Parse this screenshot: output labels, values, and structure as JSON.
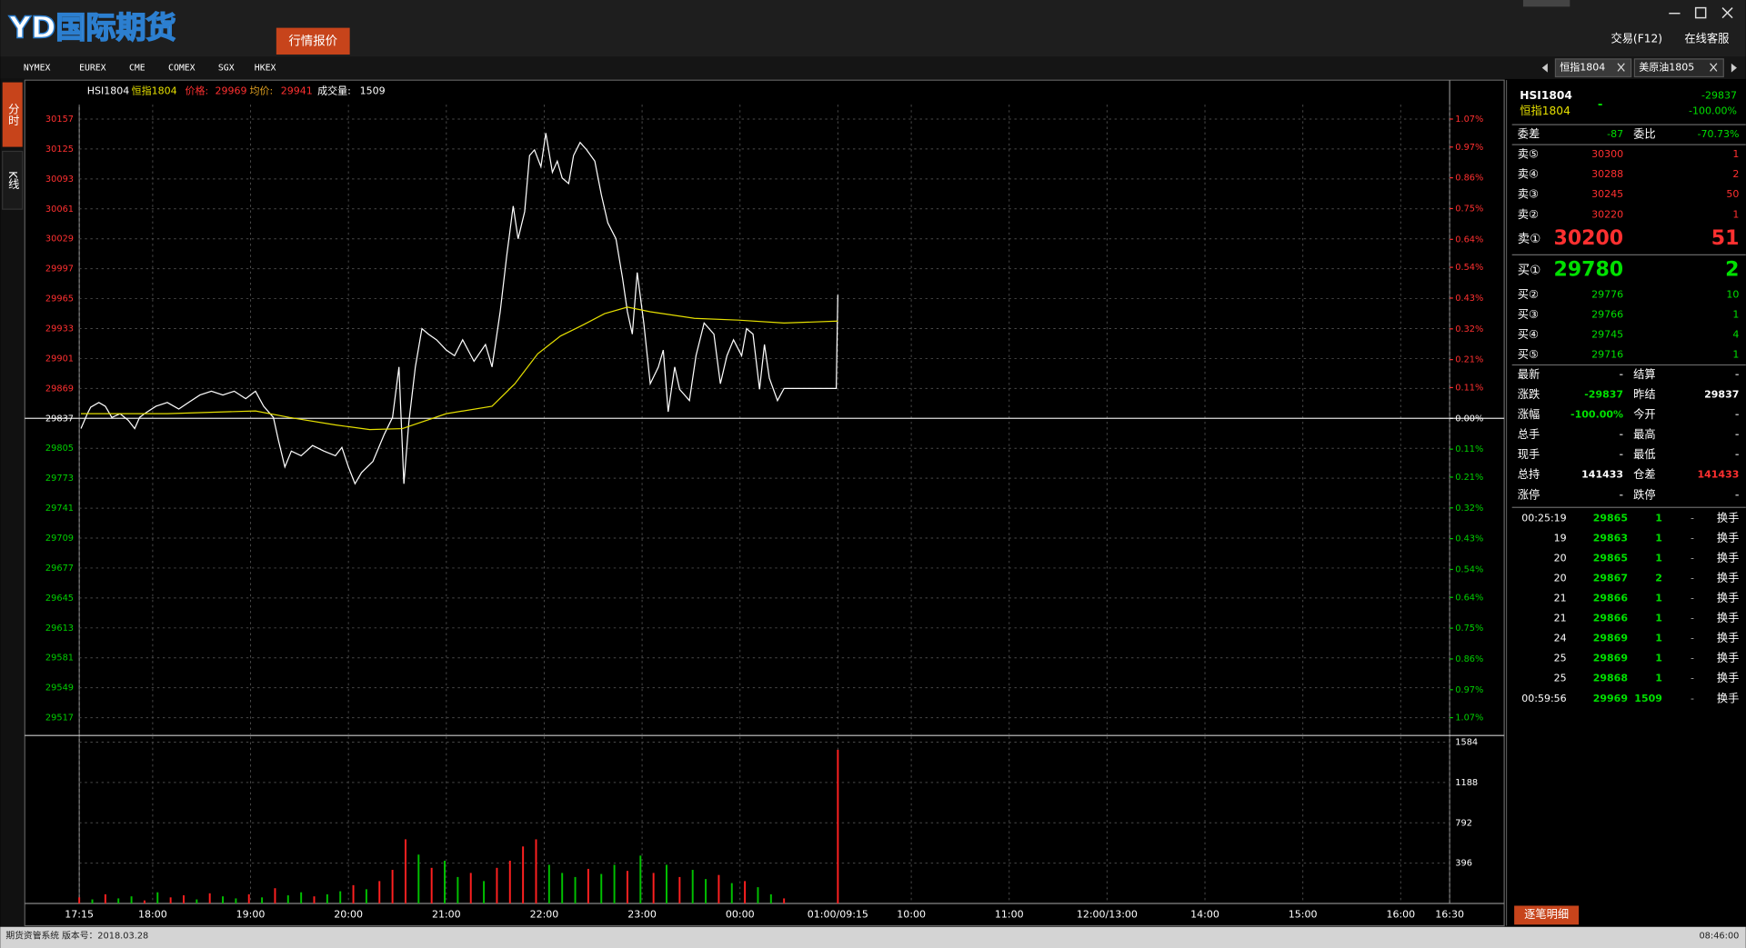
{
  "app": {
    "logo": "YD国际期货",
    "quote_button": "行情报价",
    "trade": "交易(F12)",
    "service": "在线客服",
    "exchanges": [
      "NYMEX",
      "EUREX",
      "CME",
      "COMEX",
      "SGX",
      "HKEX"
    ],
    "tabs": [
      "恒指1804",
      "美原油1805"
    ],
    "side_tabs": [
      "分时",
      "K线"
    ],
    "status": "期货资管系统  版本号：2018.03.28",
    "clock": "08:46:00"
  },
  "quote": {
    "code": "HSI1804",
    "name": "恒指1804",
    "change_mark": "-",
    "change": "-29837",
    "change_pct": "-100.00%",
    "ratio_row": [
      "委差",
      "-87",
      "委比",
      "-70.73%"
    ],
    "asks": [
      [
        "卖⑤",
        "30300",
        "1"
      ],
      [
        "卖④",
        "30288",
        "2"
      ],
      [
        "卖③",
        "30245",
        "50"
      ],
      [
        "卖②",
        "30220",
        "1"
      ],
      [
        "卖①",
        "30200",
        "51"
      ]
    ],
    "bids": [
      [
        "买①",
        "29780",
        "2"
      ],
      [
        "买②",
        "29776",
        "10"
      ],
      [
        "买③",
        "29766",
        "1"
      ],
      [
        "买④",
        "29745",
        "4"
      ],
      [
        "买⑤",
        "29716",
        "1"
      ]
    ],
    "stats": [
      [
        "最新",
        "-",
        "结算",
        "-"
      ],
      [
        "涨跌",
        "-29837",
        "昨结",
        "29837"
      ],
      [
        "涨幅",
        "-100.00%",
        "今开",
        "-"
      ],
      [
        "总手",
        "-",
        "最高",
        "-"
      ],
      [
        "现手",
        "-",
        "最低",
        "-"
      ],
      [
        "总持",
        "141433",
        "仓差",
        "141433"
      ],
      [
        "涨停",
        "-",
        "跌停",
        "-"
      ]
    ],
    "ticks": [
      [
        "00:25:19",
        "29865",
        "1",
        "-",
        "换手"
      ],
      [
        "19",
        "29863",
        "1",
        "-",
        "换手"
      ],
      [
        "20",
        "29865",
        "1",
        "-",
        "换手"
      ],
      [
        "20",
        "29867",
        "2",
        "-",
        "换手"
      ],
      [
        "21",
        "29866",
        "1",
        "-",
        "换手"
      ],
      [
        "21",
        "29866",
        "1",
        "-",
        "换手"
      ],
      [
        "24",
        "29869",
        "1",
        "-",
        "换手"
      ],
      [
        "25",
        "29869",
        "1",
        "-",
        "换手"
      ],
      [
        "25",
        "29868",
        "1",
        "-",
        "换手"
      ],
      [
        "00:59:56",
        "29969",
        "1509",
        "-",
        "换手"
      ]
    ],
    "detail_button": "逐笔明细"
  },
  "chart_data": [
    {
      "type": "line",
      "title": "HSI1804",
      "subtitle": "恒指1804",
      "grid": true,
      "xlim": [
        0,
        840
      ],
      "xticks": [
        {
          "value": 0,
          "label": "17:15"
        },
        {
          "value": 45,
          "label": "18:00"
        },
        {
          "value": 105,
          "label": "19:00"
        },
        {
          "value": 165,
          "label": "20:00"
        },
        {
          "value": 225,
          "label": "21:00"
        },
        {
          "value": 285,
          "label": "22:00"
        },
        {
          "value": 345,
          "label": "23:00"
        },
        {
          "value": 405,
          "label": "00:00"
        },
        {
          "value": 465,
          "label": "01:00/09:15"
        },
        {
          "value": 510,
          "label": "10:00"
        },
        {
          "value": 570,
          "label": "11:00"
        },
        {
          "value": 630,
          "label": "12:00/13:00"
        },
        {
          "value": 690,
          "label": "14:00"
        },
        {
          "value": 750,
          "label": "15:00"
        },
        {
          "value": 810,
          "label": "16:00"
        },
        {
          "value": 840,
          "label": "16:30"
        }
      ],
      "ylim": [
        29517,
        30157
      ],
      "yticks": [
        30157,
        30125,
        30093,
        30061,
        30029,
        29997,
        29965,
        29933,
        29901,
        29869,
        29837,
        29805,
        29773,
        29741,
        29709,
        29677,
        29645,
        29613,
        29581,
        29549,
        29517
      ],
      "y2lim": [
        -1.07,
        1.07
      ],
      "y2ticks": [
        {
          "value": 1.07,
          "label": "1.07%"
        },
        {
          "value": 0.97,
          "label": "0.97%"
        },
        {
          "value": 0.86,
          "label": "0.86%"
        },
        {
          "value": 0.75,
          "label": "0.75%"
        },
        {
          "value": 0.64,
          "label": "0.64%"
        },
        {
          "value": 0.54,
          "label": "0.54%"
        },
        {
          "value": 0.43,
          "label": "0.43%"
        },
        {
          "value": 0.32,
          "label": "0.32%"
        },
        {
          "value": 0.21,
          "label": "0.21%"
        },
        {
          "value": 0.11,
          "label": "0.11%"
        },
        {
          "value": 0,
          "label": "0.00%"
        },
        {
          "value": -0.11,
          "label": "0.11%"
        },
        {
          "value": -0.21,
          "label": "0.21%"
        },
        {
          "value": -0.32,
          "label": "0.32%"
        },
        {
          "value": -0.43,
          "label": "0.43%"
        },
        {
          "value": -0.54,
          "label": "0.54%"
        },
        {
          "value": -0.64,
          "label": "0.64%"
        },
        {
          "value": -0.75,
          "label": "0.75%"
        },
        {
          "value": -0.86,
          "label": "0.86%"
        },
        {
          "value": -0.97,
          "label": "0.97%"
        },
        {
          "value": -1.07,
          "label": "1.07%"
        }
      ],
      "series": [
        {
          "name": "价格:",
          "value_label": "29969",
          "color": "#ffffff",
          "x": [
            1,
            5,
            7,
            12,
            16,
            20,
            25,
            30,
            34,
            37,
            40,
            47,
            54,
            61,
            67,
            74,
            81,
            88,
            95,
            102,
            108,
            113,
            119,
            122,
            126,
            130,
            136,
            143,
            150,
            157,
            161,
            165,
            169,
            173,
            180,
            187,
            192,
            196,
            199,
            202,
            206,
            210,
            214,
            219,
            225,
            230,
            235,
            242,
            249,
            253,
            258,
            262,
            266,
            269,
            273,
            276,
            279,
            283,
            286,
            290,
            293,
            296,
            300,
            303,
            307,
            311,
            316,
            320,
            324,
            329,
            333,
            336,
            339,
            342,
            346,
            350,
            355,
            358,
            361,
            365,
            368,
            374,
            378,
            383,
            389,
            393,
            397,
            401,
            406,
            409,
            413,
            417,
            420,
            423,
            428,
            432,
            464,
            465
          ],
          "values": [
            29826,
            29842,
            29849,
            29854,
            29850,
            29838,
            29842,
            29835,
            29826,
            29838,
            29842,
            29850,
            29854,
            29847,
            29854,
            29862,
            29866,
            29862,
            29866,
            29858,
            29866,
            29850,
            29838,
            29814,
            29785,
            29802,
            29797,
            29808,
            29802,
            29797,
            29806,
            29785,
            29767,
            29779,
            29791,
            29820,
            29838,
            29892,
            29767,
            29832,
            29892,
            29933,
            29927,
            29921,
            29910,
            29904,
            29921,
            29898,
            29916,
            29892,
            29951,
            30011,
            30064,
            30029,
            30058,
            30118,
            30124,
            30106,
            30142,
            30100,
            30112,
            30094,
            30088,
            30118,
            30132,
            30124,
            30112,
            30076,
            30046,
            30029,
            29987,
            29951,
            29927,
            29993,
            29939,
            29874,
            29892,
            29910,
            29844,
            29892,
            29868,
            29856,
            29904,
            29939,
            29927,
            29874,
            29904,
            29921,
            29904,
            29933,
            29927,
            29868,
            29916,
            29880,
            29856,
            29869,
            29869,
            29969
          ]
        },
        {
          "name": "均价:",
          "value_label": "29941",
          "color": "#e6e000",
          "x": [
            1,
            54,
            108,
            129,
            157,
            178,
            198,
            225,
            253,
            267,
            281,
            295,
            309,
            322,
            336,
            350,
            377,
            404,
            432,
            465
          ],
          "values": [
            29842,
            29842,
            29845,
            29838,
            29830,
            29825,
            29826,
            29842,
            29850,
            29874,
            29906,
            29925,
            29937,
            29949,
            29956,
            29951,
            29944,
            29942,
            29939,
            29941
          ]
        }
      ]
    },
    {
      "type": "bar",
      "name": "成交量:",
      "value_label": "1509",
      "grid": true,
      "xlim": [
        0,
        840
      ],
      "ylim": [
        0,
        1584
      ],
      "yticks": [
        396,
        792,
        1188,
        1584
      ],
      "x": [
        0,
        8,
        16,
        24,
        32,
        40,
        48,
        56,
        64,
        72,
        80,
        88,
        96,
        104,
        112,
        120,
        128,
        136,
        144,
        152,
        160,
        168,
        176,
        184,
        192,
        200,
        208,
        216,
        224,
        232,
        240,
        248,
        256,
        264,
        272,
        280,
        288,
        296,
        304,
        312,
        320,
        328,
        336,
        344,
        352,
        360,
        368,
        376,
        384,
        392,
        400,
        408,
        416,
        424,
        432,
        465
      ],
      "values": [
        60,
        40,
        90,
        50,
        70,
        30,
        110,
        60,
        80,
        40,
        100,
        70,
        50,
        90,
        60,
        150,
        80,
        110,
        70,
        90,
        120,
        180,
        140,
        220,
        330,
        630,
        480,
        350,
        420,
        260,
        300,
        220,
        350,
        420,
        560,
        630,
        380,
        300,
        260,
        340,
        290,
        380,
        320,
        470,
        300,
        380,
        260,
        330,
        240,
        280,
        200,
        220,
        160,
        90,
        50,
        1509
      ],
      "colors": [
        "#ff2020",
        "#00c000",
        "#ff2020",
        "#00c000",
        "#00c000",
        "#ff2020",
        "#00c000",
        "#ff2020",
        "#ff2020",
        "#00c000",
        "#ff2020",
        "#00c000",
        "#00c000",
        "#ff2020",
        "#00c000",
        "#ff2020",
        "#00c000",
        "#00c000",
        "#ff2020",
        "#00c000",
        "#00c000",
        "#ff2020",
        "#00c000",
        "#ff2020",
        "#ff2020",
        "#ff2020",
        "#00c000",
        "#ff2020",
        "#00c000",
        "#00c000",
        "#ff2020",
        "#00c000",
        "#ff2020",
        "#ff2020",
        "#ff2020",
        "#ff2020",
        "#00c000",
        "#00c000",
        "#00c000",
        "#ff2020",
        "#00c000",
        "#00c000",
        "#ff2020",
        "#00c000",
        "#ff2020",
        "#00c000",
        "#ff2020",
        "#00c000",
        "#00c000",
        "#ff2020",
        "#00c000",
        "#ff2020",
        "#00c000",
        "#00c000",
        "#ff2020",
        "#ff2020"
      ]
    }
  ]
}
